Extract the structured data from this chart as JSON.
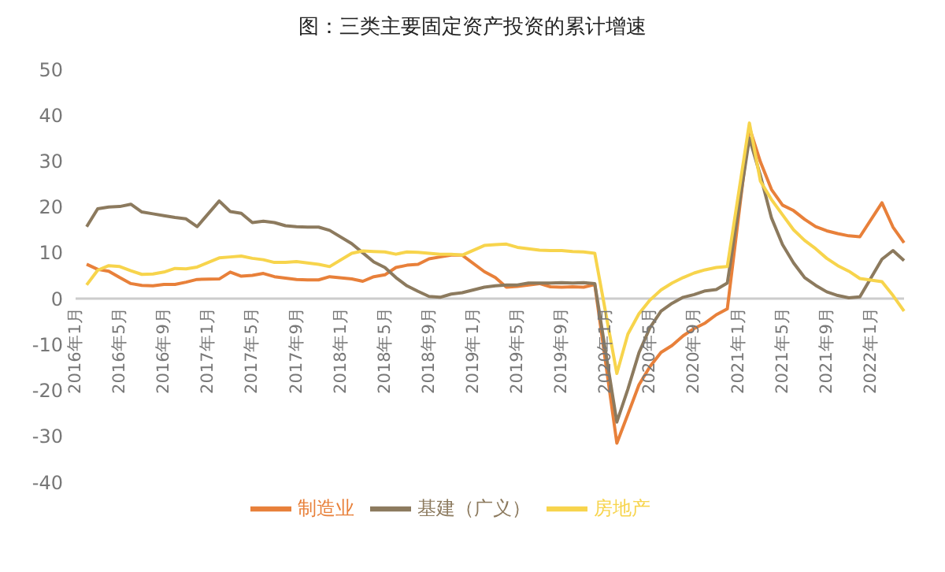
{
  "chart_data": {
    "type": "line",
    "title": "图：三类主要固定资产投资的累计增速",
    "categories": [
      "2016年1月",
      null,
      null,
      null,
      "2016年5月",
      null,
      null,
      null,
      "2016年9月",
      null,
      null,
      null,
      "2017年1月",
      null,
      null,
      null,
      "2017年5月",
      null,
      null,
      null,
      "2017年9月",
      null,
      null,
      null,
      "2018年1月",
      null,
      null,
      null,
      "2018年5月",
      null,
      null,
      null,
      "2018年9月",
      null,
      null,
      null,
      "2019年1月",
      null,
      null,
      null,
      "2019年5月",
      null,
      null,
      null,
      "2019年9月",
      null,
      null,
      null,
      "2020年1月",
      null,
      null,
      null,
      "2020年5月",
      null,
      null,
      null,
      "2020年9月",
      null,
      null,
      null,
      "2021年1月",
      null,
      null,
      null,
      "2021年5月",
      null,
      null,
      null,
      "2021年9月",
      null,
      null,
      null,
      "2022年1月",
      null,
      null,
      null
    ],
    "series": [
      {
        "name": "制造业",
        "color": "#e8803a",
        "values": [
          null,
          7.5,
          6.4,
          6.0,
          4.6,
          3.3,
          2.9,
          2.8,
          3.1,
          3.1,
          3.6,
          4.2,
          null,
          4.3,
          5.8,
          4.9,
          5.1,
          5.5,
          4.8,
          4.5,
          4.2,
          4.1,
          4.1,
          4.8,
          null,
          4.3,
          3.8,
          4.8,
          5.2,
          6.8,
          7.3,
          7.5,
          8.7,
          9.1,
          9.5,
          9.5,
          null,
          5.9,
          4.6,
          2.5,
          2.7,
          3.0,
          3.3,
          2.6,
          2.5,
          2.6,
          2.5,
          3.1,
          null,
          -31.5,
          -25.2,
          -18.8,
          -14.8,
          -11.7,
          -10.2,
          -8.1,
          -6.5,
          -5.3,
          -3.5,
          -2.2,
          null,
          37.3,
          29.8,
          23.8,
          20.4,
          19.2,
          17.3,
          15.7,
          14.8,
          14.2,
          13.7,
          13.5,
          null,
          20.9,
          15.6,
          12.2
        ]
      },
      {
        "name": "基建（广义）",
        "color": "#8c7a5e",
        "values": [
          null,
          15.7,
          19.6,
          20.0,
          20.1,
          20.6,
          18.9,
          18.5,
          18.1,
          17.7,
          17.4,
          15.7,
          null,
          21.3,
          19.0,
          18.6,
          16.6,
          16.9,
          16.6,
          15.9,
          15.7,
          15.6,
          15.6,
          14.9,
          null,
          12.0,
          10.0,
          8.0,
          6.8,
          4.6,
          2.8,
          1.6,
          0.5,
          0.3,
          1.0,
          1.3,
          null,
          2.5,
          2.8,
          3.0,
          3.0,
          3.4,
          3.4,
          3.4,
          3.5,
          3.4,
          3.5,
          3.3,
          null,
          -26.9,
          -19.7,
          -11.8,
          -6.3,
          -2.7,
          -1.0,
          0.3,
          0.9,
          1.7,
          2.0,
          3.4,
          null,
          35.0,
          26.8,
          17.6,
          11.8,
          7.8,
          4.6,
          2.9,
          1.5,
          0.7,
          0.2,
          0.4,
          null,
          8.6,
          10.5,
          8.3
        ]
      },
      {
        "name": "房地产",
        "color": "#f7d44c",
        "values": [
          null,
          3.0,
          6.2,
          7.2,
          7.0,
          6.1,
          5.3,
          5.4,
          5.8,
          6.6,
          6.5,
          6.9,
          null,
          8.9,
          9.1,
          9.3,
          8.8,
          8.5,
          7.9,
          7.9,
          8.1,
          7.8,
          7.5,
          7.0,
          null,
          9.9,
          10.4,
          10.3,
          10.2,
          9.7,
          10.2,
          10.1,
          9.9,
          9.7,
          9.7,
          9.5,
          null,
          11.6,
          11.8,
          11.9,
          11.2,
          10.9,
          10.6,
          10.5,
          10.5,
          10.3,
          10.2,
          9.9,
          null,
          -16.3,
          -7.7,
          -3.3,
          -0.3,
          1.9,
          3.4,
          4.6,
          5.6,
          6.3,
          6.8,
          7.0,
          null,
          38.3,
          25.6,
          21.6,
          18.3,
          15.0,
          12.7,
          10.9,
          8.8,
          7.2,
          6.0,
          4.4,
          null,
          3.7,
          0.7,
          -2.7
        ]
      }
    ],
    "ylim": [
      -40,
      50
    ],
    "yticks": [
      -40,
      -30,
      -20,
      -10,
      0,
      10,
      20,
      30,
      40,
      50
    ],
    "legend": "bottom"
  }
}
